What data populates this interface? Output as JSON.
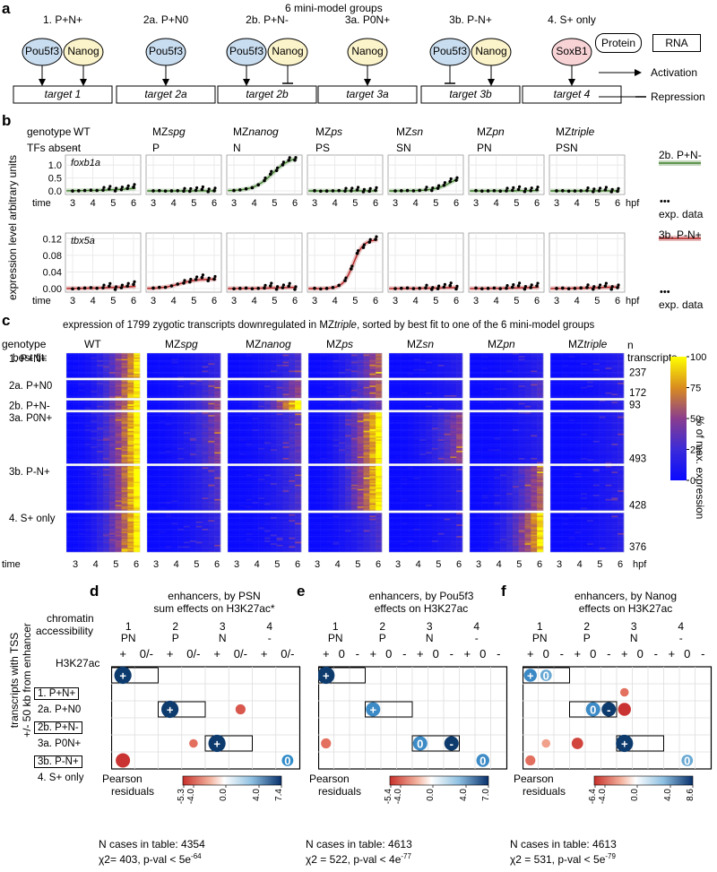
{
  "panel_letters": [
    "a",
    "b",
    "c",
    "d",
    "e",
    "f"
  ],
  "panel_a": {
    "title": "6 mini-model groups",
    "groups": [
      {
        "label": "1. P+N+",
        "target": "target 1"
      },
      {
        "label": "2a. P+N0",
        "target": "target 2a"
      },
      {
        "label": "2b. P+N-",
        "target": "target 2b"
      },
      {
        "label": "3a. P0N+",
        "target": "target 3a"
      },
      {
        "label": "3b. P-N+",
        "target": "target 3b"
      },
      {
        "label": "4. S+ only",
        "target": "target 4"
      }
    ],
    "tf_names": {
      "pou5f3": "Pou5f3",
      "nanog": "Nanog",
      "soxb1": "SoxB1"
    },
    "legend": {
      "protein": "Protein",
      "rna": "RNA",
      "activation": "Activation",
      "repression": "Repression"
    },
    "colors": {
      "pou5f3": "#c9ddf0",
      "nanog": "#fbf3c9",
      "soxb1": "#f8d3d6"
    }
  },
  "panel_b": {
    "row_genotype_label": "genotype",
    "row_tf_label": "TFs absent",
    "genotypes": [
      {
        "prefix": "WT",
        "suffix": "",
        "absent": "-"
      },
      {
        "prefix": "MZ",
        "suffix": "spg",
        "absent": "P"
      },
      {
        "prefix": "MZ",
        "suffix": "nanog",
        "absent": "N"
      },
      {
        "prefix": "MZ",
        "suffix": "ps",
        "absent": "PS"
      },
      {
        "prefix": "MZ",
        "suffix": "sn",
        "absent": "SN"
      },
      {
        "prefix": "MZ",
        "suffix": "pn",
        "absent": "PN"
      },
      {
        "prefix": "MZ",
        "suffix": "triple",
        "absent": "PSN"
      }
    ],
    "y_axis_label": "expression level arbitrary units",
    "time_label": "time",
    "unit_label": "hpf",
    "x_ticks": [
      "3",
      "4",
      "5",
      "6"
    ],
    "gene1": {
      "name": "foxb1a",
      "yticks": [
        "1.0",
        "0.5",
        "0.0"
      ],
      "legend": "2b. P+N-",
      "color": "#3f7f2a"
    },
    "gene2": {
      "name": "tbx5a",
      "yticks": [
        "0.12",
        "0.08",
        "0.04",
        "0.00"
      ],
      "legend": "3b. P-N+",
      "color": "#b32121"
    },
    "exp_data_label": "exp. data",
    "exp_dots": "•••"
  },
  "panel_c": {
    "title_pre": "expression of 1799 zygotic transcripts downregulated in MZ",
    "title_ital": "triple",
    "title_post": ", sorted  by best fit to one of the 6 mini-model groups",
    "genotype_label": "genotype",
    "best_fit_label": "best fit:",
    "n_label": "n",
    "transcripts_label": "transcripts",
    "groups": [
      {
        "label": "1. P+N+",
        "n": "237"
      },
      {
        "label": "2a. P+N0",
        "n": "172"
      },
      {
        "label": "2b. P+N-",
        "n": "93"
      },
      {
        "label": "3a. P0N+",
        "n": "493"
      },
      {
        "label": "3b. P-N+",
        "n": "428"
      },
      {
        "label": "4. S+ only",
        "n": "376"
      }
    ],
    "colorbar_ticks": [
      "100",
      "75",
      "50",
      "25",
      "0"
    ],
    "colorbar_label": "% of max. expression",
    "time_label": "time",
    "unit_label": "hpf",
    "x_ticks": [
      "3",
      "4",
      "5",
      "6"
    ]
  },
  "panels_def": [
    {
      "title1": "enhancers, by PSN",
      "title2": "sum effects on H3K27ac*",
      "left": "-5.3",
      "right": "7.4",
      "mid1": "-4.0",
      "mid2": "0.0",
      "mid3": "4.0",
      "n": "N cases in table: 4354",
      "chi_pre": "χ2= 403, p-val < 5e",
      "chi_exp": "-64"
    },
    {
      "title1": "enhancers, by Pou5f3",
      "title2": "effects on H3K27ac",
      "left": "-5.4",
      "right": "7.0",
      "mid1": "-4.0",
      "mid2": "0.0",
      "mid3": "4.0",
      "n": "N cases in table: 4613",
      "chi_pre": "χ2 = 522, p-val < 4e",
      "chi_exp": "-77"
    },
    {
      "title1": "enhancers, by Nanog",
      "title2": "effects on H3K27ac",
      "left": "-6.4",
      "right": "8.6",
      "mid1": "-4.0",
      "mid2": "0.0",
      "mid3": "4.0",
      "n": "N cases in table: 4613",
      "chi_pre": "χ2 = 531, p-val < 5e",
      "chi_exp": "-79"
    }
  ],
  "panel_def_common": {
    "chromatin_label": "chromatin",
    "accessibility_label": "accessibility",
    "h3k27ac_label": "H3K27ac",
    "col_numbers": [
      "1",
      "2",
      "3",
      "4"
    ],
    "col_tfs": [
      "PN",
      "P",
      "N",
      "-"
    ],
    "d_signs": [
      "+",
      "0/-",
      "+",
      "0/-",
      "+",
      "0/-",
      "+",
      "0/-"
    ],
    "ef_signs": [
      "+",
      "0",
      "-",
      "+",
      "0",
      "-",
      "+",
      "0",
      "-",
      "+",
      "0",
      "-"
    ],
    "row_labels": [
      "1. P+N+",
      "2a. P+N0",
      "2b. P+N-",
      "3a. P0N+",
      "3b. P-N+",
      "4. S+ only"
    ],
    "side_label_1": "transcripts with TSS",
    "side_label_2": "+/- 50 kb from enhancer",
    "pearson_1": "Pearson",
    "pearson_2": "residuals"
  }
}
